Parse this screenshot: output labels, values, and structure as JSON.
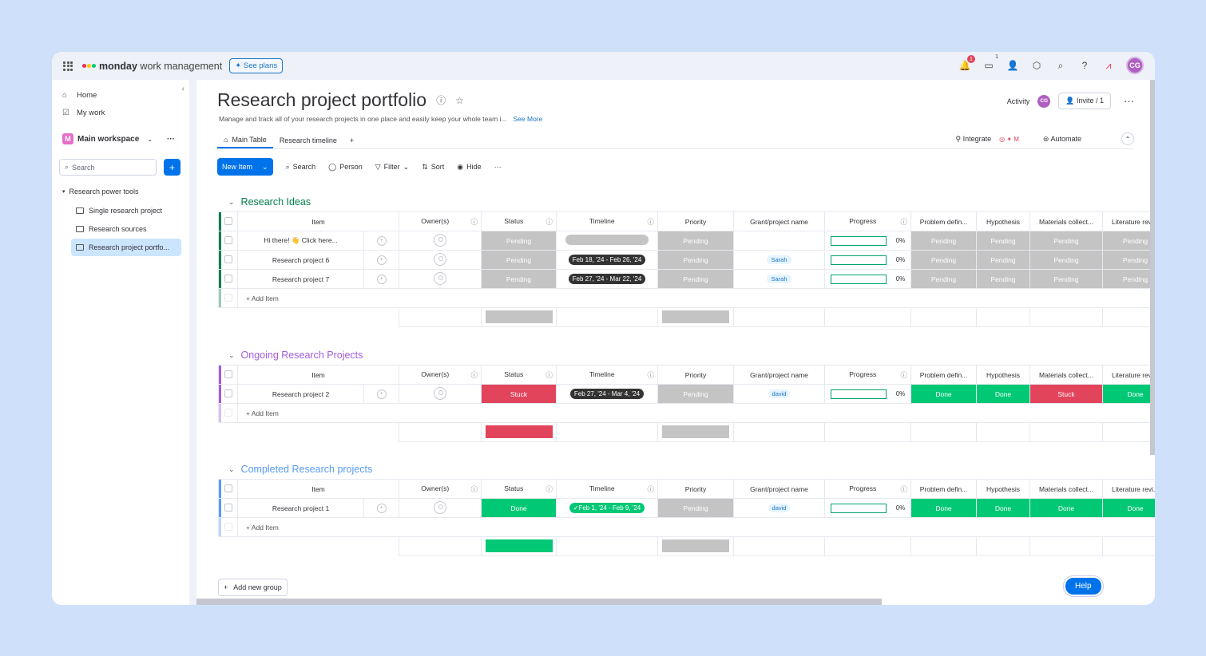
{
  "topbar": {
    "brand_bold": "monday",
    "brand_rest": " work management",
    "see_plans": "See plans",
    "notif_count": "1",
    "inbox_count": "1",
    "avatar": "CG"
  },
  "sidebar": {
    "home": "Home",
    "my_work": "My work",
    "workspace_initial": "M",
    "workspace": "Main workspace",
    "search_placeholder": "Search",
    "folder": "Research power tools",
    "boards": [
      "Single research project",
      "Research sources",
      "Research project portfo..."
    ]
  },
  "board": {
    "title": "Research project portfolio",
    "description": "Manage and track all of your research projects in one place and easily keep your whole team i...",
    "see_more": "See More",
    "activity": "Activity",
    "activity_avatar": "CG",
    "invite": "Invite / 1",
    "tabs": [
      "Main Table",
      "Research timeline"
    ],
    "integrate": "Integrate",
    "automate": "Automate"
  },
  "toolbar": {
    "new_item": "New Item",
    "search": "Search",
    "person": "Person",
    "filter": "Filter",
    "sort": "Sort",
    "hide": "Hide"
  },
  "columns": [
    "Item",
    "Owner(s)",
    "Status",
    "Timeline",
    "Priority",
    "Grant/project name",
    "Progress",
    "Problem defin...",
    "Hypothesis",
    "Materials collect...",
    "Literature revi..."
  ],
  "groups": [
    {
      "title": "Research Ideas",
      "color": "#037f4c",
      "rows": [
        {
          "item": "Hi there! 👋 Click here...",
          "status": "Pending",
          "timeline": "",
          "priority": "Pending",
          "grant": "",
          "progress": "0%",
          "c1": "Pending",
          "c2": "Pending",
          "c3": "Pending",
          "c4": "Pending"
        },
        {
          "item": "Research project 6",
          "status": "Pending",
          "timeline": "Feb 18, '24 - Feb 26, '24",
          "priority": "Pending",
          "grant": "Sarah",
          "progress": "0%",
          "c1": "Pending",
          "c2": "Pending",
          "c3": "Pending",
          "c4": "Pending"
        },
        {
          "item": "Research project 7",
          "status": "Pending",
          "timeline": "Feb 27, '24 - Mar 22, '24",
          "priority": "Pending",
          "grant": "Sarah",
          "progress": "0%",
          "c1": "Pending",
          "c2": "Pending",
          "c3": "Pending",
          "c4": "Pending"
        }
      ],
      "add_item": "+ Add Item"
    },
    {
      "title": "Ongoing Research Projects",
      "color": "#a25ddc",
      "rows": [
        {
          "item": "Research project 2",
          "status": "Stuck",
          "timeline": "Feb 27, '24 - Mar 4, '24",
          "priority": "Pending",
          "grant": "david",
          "progress": "0%",
          "c1": "Done",
          "c2": "Done",
          "c3": "Stuck",
          "c4": "Done"
        }
      ],
      "add_item": "+ Add Item"
    },
    {
      "title": "Completed Research projects",
      "color": "#579bfc",
      "rows": [
        {
          "item": "Research project 1",
          "status": "Done",
          "timeline": "Feb 1, '24 - Feb 9, '24",
          "priority": "Pending",
          "grant": "david",
          "progress": "0%",
          "c1": "Done",
          "c2": "Done",
          "c3": "Done",
          "c4": "Done"
        }
      ],
      "add_item": "+ Add Item"
    }
  ],
  "add_group": "Add new group",
  "help": "Help",
  "colors": {
    "pending": "#c4c4c4",
    "stuck": "#e2445c",
    "done": "#00c875",
    "primary": "#0073ea"
  }
}
